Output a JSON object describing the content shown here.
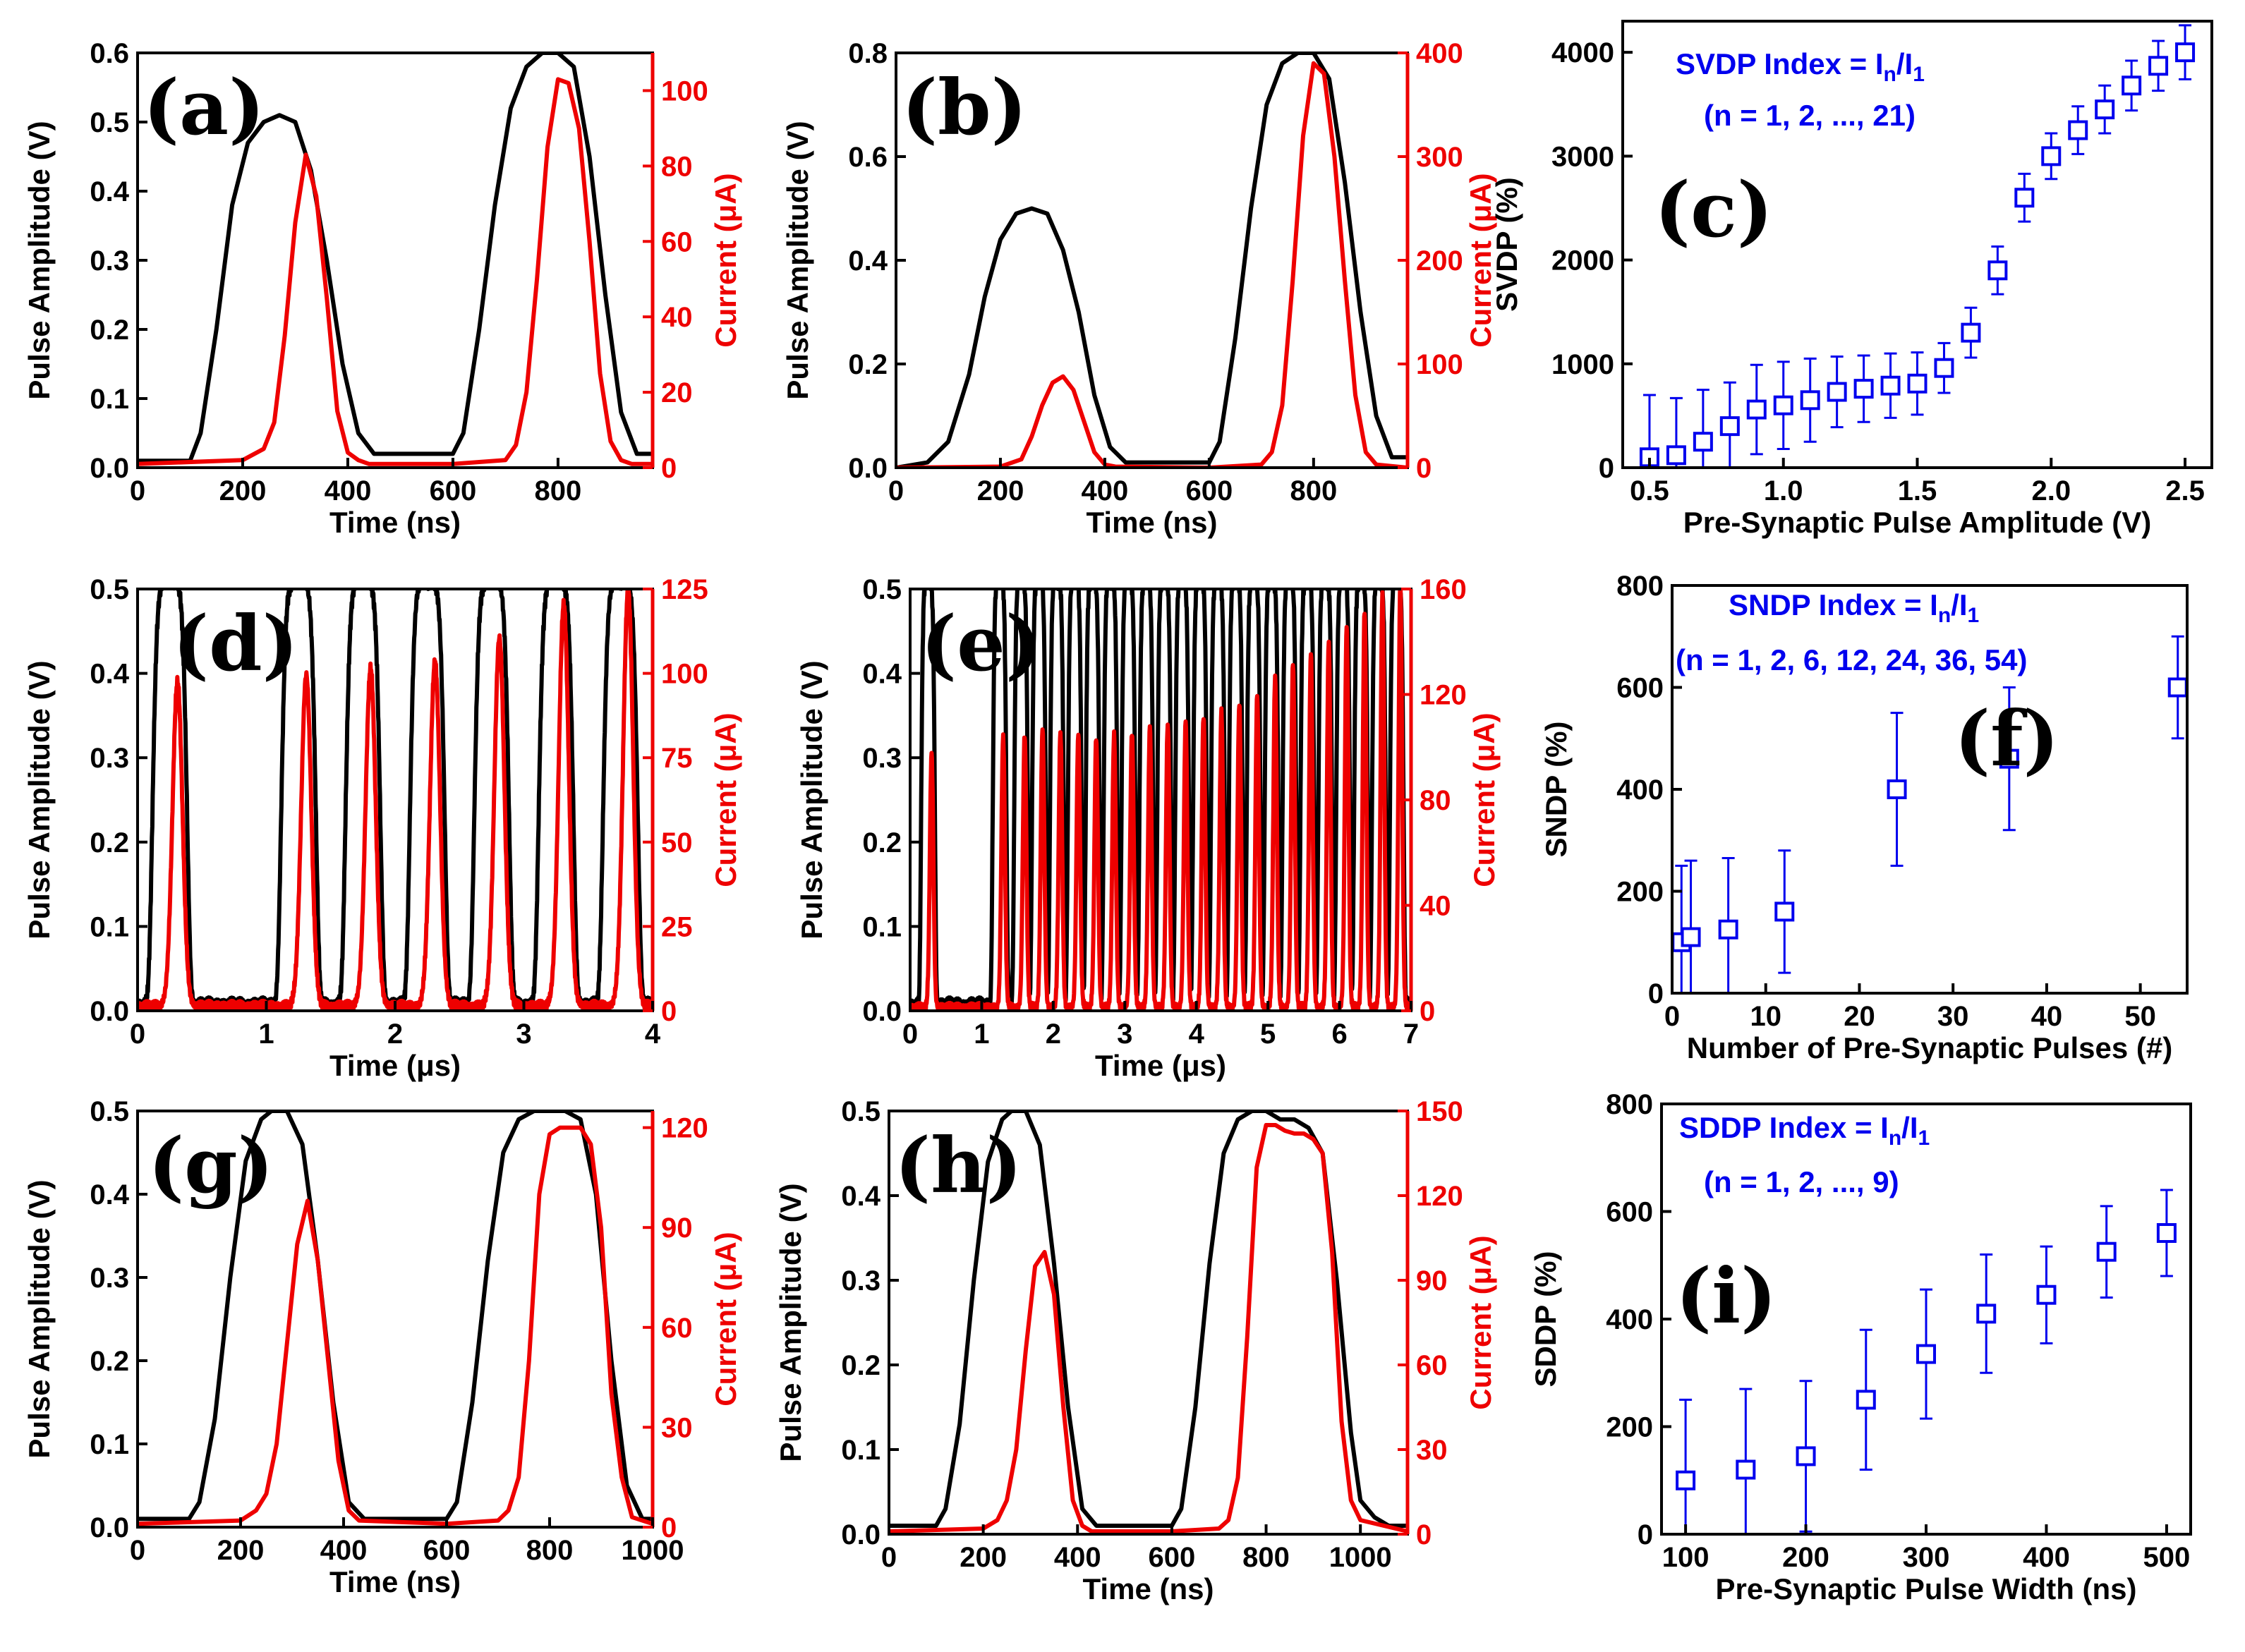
{
  "colors": {
    "voltage": "#000000",
    "current": "#ee0000",
    "marker": "#0000ee",
    "axis": "#000000"
  },
  "chart_data": [
    {
      "id": "a",
      "type": "line",
      "panel_label": "(a)",
      "xlabel": "Time (ns)",
      "ylabel": "Pulse Amplitude (V)",
      "y2label": "Current (μA)",
      "xlim": [
        0,
        980
      ],
      "ylim": [
        0,
        0.6
      ],
      "y2lim": [
        0,
        110
      ],
      "xticks": [
        0,
        200,
        400,
        600,
        800
      ],
      "yticks": [
        0.0,
        0.1,
        0.2,
        0.3,
        0.4,
        0.5,
        0.6
      ],
      "y2ticks": [
        0,
        20,
        40,
        60,
        80,
        100
      ],
      "xtick_labels": [
        "0",
        "200",
        "400",
        "600",
        "800"
      ],
      "ytick_labels": [
        "0.0",
        "0.1",
        "0.2",
        "0.3",
        "0.4",
        "0.5",
        "0.6"
      ],
      "y2tick_labels": [
        "0",
        "20",
        "40",
        "60",
        "80",
        "100"
      ],
      "voltage": {
        "x": [
          0,
          100,
          120,
          150,
          180,
          210,
          240,
          270,
          300,
          330,
          360,
          390,
          420,
          450,
          600,
          620,
          650,
          680,
          710,
          740,
          770,
          800,
          830,
          860,
          890,
          920,
          950,
          980
        ],
        "y": [
          0.01,
          0.01,
          0.05,
          0.2,
          0.38,
          0.47,
          0.5,
          0.51,
          0.5,
          0.43,
          0.3,
          0.15,
          0.05,
          0.02,
          0.02,
          0.05,
          0.2,
          0.38,
          0.52,
          0.58,
          0.6,
          0.6,
          0.58,
          0.45,
          0.25,
          0.08,
          0.02,
          0.02
        ]
      },
      "current": {
        "x": [
          0,
          200,
          240,
          260,
          280,
          300,
          320,
          340,
          360,
          380,
          400,
          420,
          440,
          600,
          700,
          720,
          740,
          760,
          780,
          800,
          820,
          840,
          860,
          880,
          900,
          920,
          940,
          980
        ],
        "y": [
          1,
          2,
          5,
          12,
          35,
          65,
          83,
          72,
          45,
          15,
          4,
          2,
          1,
          1,
          2,
          6,
          20,
          50,
          85,
          103,
          102,
          90,
          60,
          25,
          7,
          2,
          1,
          1
        ]
      }
    },
    {
      "id": "b",
      "type": "line",
      "panel_label": "(b)",
      "xlabel": "Time (ns)",
      "ylabel": "Pulse Amplitude (V)",
      "y2label": "Current (μA)",
      "xlim": [
        0,
        980
      ],
      "ylim": [
        0,
        0.8
      ],
      "y2lim": [
        0,
        400
      ],
      "xticks": [
        0,
        200,
        400,
        600,
        800
      ],
      "yticks": [
        0.0,
        0.2,
        0.4,
        0.6,
        0.8
      ],
      "y2ticks": [
        0,
        100,
        200,
        300,
        400
      ],
      "xtick_labels": [
        "0",
        "200",
        "400",
        "600",
        "800"
      ],
      "ytick_labels": [
        "0.0",
        "0.2",
        "0.4",
        "0.6",
        "0.8"
      ],
      "y2tick_labels": [
        "0",
        "100",
        "200",
        "300",
        "400"
      ],
      "voltage": {
        "x": [
          0,
          60,
          100,
          140,
          170,
          200,
          230,
          260,
          290,
          320,
          350,
          380,
          410,
          440,
          600,
          620,
          650,
          680,
          710,
          740,
          770,
          800,
          830,
          860,
          890,
          920,
          950,
          980
        ],
        "y": [
          0.0,
          0.01,
          0.05,
          0.18,
          0.33,
          0.44,
          0.49,
          0.5,
          0.49,
          0.42,
          0.3,
          0.14,
          0.04,
          0.01,
          0.01,
          0.05,
          0.25,
          0.5,
          0.7,
          0.78,
          0.8,
          0.8,
          0.75,
          0.55,
          0.3,
          0.1,
          0.02,
          0.02
        ]
      },
      "current": {
        "x": [
          0,
          200,
          240,
          260,
          280,
          300,
          320,
          340,
          360,
          380,
          400,
          420,
          600,
          700,
          720,
          740,
          760,
          780,
          800,
          820,
          840,
          860,
          880,
          900,
          920,
          980
        ],
        "y": [
          0,
          1,
          8,
          30,
          60,
          82,
          88,
          75,
          45,
          15,
          3,
          1,
          0,
          3,
          15,
          60,
          180,
          320,
          390,
          380,
          300,
          180,
          70,
          15,
          3,
          0
        ]
      }
    },
    {
      "id": "c",
      "type": "scatter",
      "panel_label": "(c)",
      "annotation_lines": [
        "SVDP Index = I",
        "(n = 1, 2, ..., 21)"
      ],
      "annotation_sub": [
        "n",
        "1"
      ],
      "xlabel": "Pre-Synaptic Pulse Amplitude (V)",
      "ylabel": "SVDP (%)",
      "xlim": [
        0.4,
        2.6
      ],
      "ylim": [
        0,
        4300
      ],
      "xticks": [
        0.5,
        1.0,
        1.5,
        2.0,
        2.5
      ],
      "yticks": [
        0,
        1000,
        2000,
        3000,
        4000
      ],
      "xtick_labels": [
        "0.5",
        "1.0",
        "1.5",
        "2.0",
        "2.5"
      ],
      "ytick_labels": [
        "0",
        "1000",
        "2000",
        "3000",
        "4000"
      ],
      "x": [
        0.5,
        0.6,
        0.7,
        0.8,
        0.9,
        1.0,
        1.1,
        1.2,
        1.3,
        1.4,
        1.5,
        1.6,
        1.7,
        1.8,
        1.9,
        2.0,
        2.1,
        2.2,
        2.3,
        2.4,
        2.5
      ],
      "y": [
        100,
        120,
        250,
        400,
        560,
        600,
        650,
        730,
        760,
        790,
        810,
        960,
        1300,
        1900,
        2600,
        3000,
        3250,
        3450,
        3680,
        3870,
        4000
      ],
      "err": [
        600,
        550,
        500,
        420,
        430,
        420,
        400,
        340,
        320,
        310,
        300,
        240,
        240,
        230,
        230,
        220,
        230,
        230,
        240,
        240,
        260
      ]
    },
    {
      "id": "d",
      "type": "line",
      "panel_label": "(d)",
      "xlabel": "Time (μs)",
      "ylabel": "Pulse Amplitude (V)",
      "y2label": "Current (μA)",
      "xlim": [
        0,
        4
      ],
      "ylim": [
        0,
        0.5
      ],
      "y2lim": [
        0,
        125
      ],
      "xticks": [
        0,
        1,
        2,
        3,
        4
      ],
      "yticks": [
        0.0,
        0.1,
        0.2,
        0.3,
        0.4,
        0.5
      ],
      "y2ticks": [
        0,
        25,
        50,
        75,
        100,
        125
      ],
      "xtick_labels": [
        "0",
        "1",
        "2",
        "3",
        "4"
      ],
      "ytick_labels": [
        "0.0",
        "0.1",
        "0.2",
        "0.3",
        "0.4",
        "0.5"
      ],
      "y2tick_labels": [
        "0",
        "25",
        "50",
        "75",
        "100",
        "125"
      ],
      "pulse_centers": [
        0.25,
        1.25,
        1.75,
        2.25,
        2.75,
        3.25,
        3.75
      ],
      "pulse_peak_voltage": 0.5,
      "current_peaks": [
        96,
        98,
        100,
        102,
        109,
        119,
        123
      ]
    },
    {
      "id": "e",
      "type": "line",
      "panel_label": "(e)",
      "xlabel": "Time (μs)",
      "ylabel": "Pulse Amplitude (V)",
      "y2label": "Current (μA)",
      "xlim": [
        0,
        7
      ],
      "ylim": [
        0,
        0.5
      ],
      "y2lim": [
        0,
        160
      ],
      "xticks": [
        0,
        1,
        2,
        3,
        4,
        5,
        6,
        7
      ],
      "yticks": [
        0.0,
        0.1,
        0.2,
        0.3,
        0.4,
        0.5
      ],
      "y2ticks": [
        0,
        40,
        80,
        120,
        160
      ],
      "xtick_labels": [
        "0",
        "1",
        "2",
        "3",
        "4",
        "5",
        "6",
        "7"
      ],
      "ytick_labels": [
        "0.0",
        "0.1",
        "0.2",
        "0.3",
        "0.4",
        "0.5"
      ],
      "y2tick_labels": [
        "0",
        "40",
        "80",
        "120",
        "160"
      ],
      "pulse_centers": [
        0.25,
        1.25,
        1.55,
        1.8,
        2.05,
        2.3,
        2.55,
        2.8,
        3.05,
        3.3,
        3.55,
        3.8,
        4.05,
        4.3,
        4.55,
        4.8,
        5.05,
        5.3,
        5.55,
        5.8,
        6.05,
        6.3,
        6.55,
        6.8
      ],
      "pulse_peak_voltage": 0.5,
      "current_peaks": [
        96,
        102,
        103,
        105,
        104,
        103,
        102,
        103,
        104,
        106,
        107,
        108,
        110,
        112,
        115,
        118,
        125,
        130,
        134,
        138,
        144,
        150,
        156,
        160
      ]
    },
    {
      "id": "f",
      "type": "scatter",
      "panel_label": "(f)",
      "annotation_lines": [
        "SNDP Index = I",
        "(n = 1, 2, 6, 12, 24, 36, 54)"
      ],
      "annotation_sub": [
        "n",
        "1"
      ],
      "xlabel": "Number of Pre-Synaptic Pulses (#)",
      "ylabel": "SNDP (%)",
      "xlim": [
        0,
        55
      ],
      "ylim": [
        0,
        800
      ],
      "xticks": [
        0,
        10,
        20,
        30,
        40,
        50
      ],
      "yticks": [
        0,
        200,
        400,
        600,
        800
      ],
      "xtick_labels": [
        "0",
        "10",
        "20",
        "30",
        "40",
        "50"
      ],
      "ytick_labels": [
        "0",
        "200",
        "400",
        "600",
        "800"
      ],
      "x": [
        1,
        2,
        6,
        12,
        24,
        36,
        54
      ],
      "y": [
        100,
        110,
        125,
        160,
        400,
        460,
        600
      ],
      "err": [
        150,
        150,
        140,
        120,
        150,
        140,
        100
      ]
    },
    {
      "id": "g",
      "type": "line",
      "panel_label": "(g)",
      "xlabel": "Time (ns)",
      "ylabel": "Pulse Amplitude (V)",
      "y2label": "Current (μA)",
      "xlim": [
        0,
        1000
      ],
      "ylim": [
        0,
        0.5
      ],
      "y2lim": [
        0,
        125
      ],
      "xticks": [
        0,
        200,
        400,
        600,
        800,
        1000
      ],
      "yticks": [
        0.0,
        0.1,
        0.2,
        0.3,
        0.4,
        0.5
      ],
      "y2ticks": [
        0,
        30,
        60,
        90,
        120
      ],
      "xtick_labels": [
        "0",
        "200",
        "400",
        "600",
        "800",
        "1000"
      ],
      "ytick_labels": [
        "0.0",
        "0.1",
        "0.2",
        "0.3",
        "0.4",
        "0.5"
      ],
      "y2tick_labels": [
        "0",
        "30",
        "60",
        "90",
        "120"
      ],
      "voltage": {
        "x": [
          0,
          100,
          120,
          150,
          180,
          210,
          240,
          260,
          290,
          320,
          350,
          380,
          410,
          440,
          600,
          620,
          650,
          680,
          710,
          740,
          770,
          800,
          830,
          860,
          890,
          920,
          950,
          980,
          1000
        ],
        "y": [
          0.01,
          0.01,
          0.03,
          0.13,
          0.3,
          0.44,
          0.49,
          0.5,
          0.5,
          0.46,
          0.32,
          0.15,
          0.03,
          0.01,
          0.01,
          0.03,
          0.15,
          0.32,
          0.45,
          0.49,
          0.5,
          0.5,
          0.5,
          0.49,
          0.4,
          0.2,
          0.05,
          0.01,
          0.01
        ]
      },
      "current": {
        "x": [
          0,
          200,
          230,
          250,
          270,
          290,
          310,
          330,
          350,
          370,
          390,
          410,
          430,
          600,
          700,
          720,
          740,
          760,
          780,
          800,
          820,
          840,
          860,
          880,
          900,
          920,
          940,
          960,
          1000
        ],
        "y": [
          1,
          2,
          5,
          10,
          25,
          55,
          85,
          98,
          80,
          50,
          20,
          5,
          2,
          1,
          2,
          5,
          15,
          50,
          100,
          118,
          120,
          120,
          120,
          115,
          90,
          40,
          15,
          3,
          1
        ]
      }
    },
    {
      "id": "h",
      "type": "line",
      "panel_label": "(h)",
      "xlabel": "Time (ns)",
      "ylabel": "Pulse Amplitude (V)",
      "y2label": "Current (μA)",
      "xlim": [
        0,
        1100
      ],
      "ylim": [
        0,
        0.5
      ],
      "y2lim": [
        0,
        150
      ],
      "xticks": [
        0,
        200,
        400,
        600,
        800,
        1000
      ],
      "yticks": [
        0.0,
        0.1,
        0.2,
        0.3,
        0.4,
        0.5
      ],
      "y2ticks": [
        0,
        30,
        60,
        90,
        120,
        150
      ],
      "xtick_labels": [
        "0",
        "200",
        "400",
        "600",
        "800",
        "1000"
      ],
      "ytick_labels": [
        "0.0",
        "0.1",
        "0.2",
        "0.3",
        "0.4",
        "0.5"
      ],
      "y2tick_labels": [
        "0",
        "30",
        "60",
        "90",
        "120",
        "150"
      ],
      "voltage": {
        "x": [
          0,
          100,
          120,
          150,
          180,
          210,
          240,
          260,
          290,
          320,
          350,
          380,
          410,
          440,
          600,
          620,
          650,
          680,
          710,
          740,
          770,
          800,
          830,
          860,
          890,
          920,
          950,
          980,
          1000,
          1030,
          1060,
          1100
        ],
        "y": [
          0.01,
          0.01,
          0.03,
          0.13,
          0.3,
          0.44,
          0.49,
          0.5,
          0.5,
          0.46,
          0.32,
          0.15,
          0.03,
          0.01,
          0.01,
          0.03,
          0.15,
          0.32,
          0.45,
          0.49,
          0.5,
          0.5,
          0.49,
          0.49,
          0.48,
          0.45,
          0.3,
          0.12,
          0.04,
          0.02,
          0.01,
          0.01
        ]
      },
      "current": {
        "x": [
          0,
          200,
          230,
          250,
          270,
          290,
          310,
          330,
          350,
          370,
          390,
          410,
          430,
          600,
          700,
          720,
          740,
          760,
          780,
          800,
          820,
          840,
          860,
          880,
          900,
          920,
          940,
          960,
          980,
          1000,
          1100
        ],
        "y": [
          1,
          2,
          5,
          12,
          30,
          65,
          95,
          100,
          85,
          45,
          12,
          3,
          1,
          1,
          2,
          5,
          20,
          70,
          130,
          145,
          145,
          143,
          142,
          142,
          140,
          135,
          100,
          40,
          12,
          5,
          1
        ]
      }
    },
    {
      "id": "i",
      "type": "scatter",
      "panel_label": "(i)",
      "annotation_lines": [
        "SDDP Index = I",
        "(n = 1, 2, ..., 9)"
      ],
      "annotation_sub": [
        "n",
        "1"
      ],
      "xlabel": "Pre-Synaptic Pulse Width (ns)",
      "ylabel": "SDDP (%)",
      "xlim": [
        80,
        520
      ],
      "ylim": [
        0,
        800
      ],
      "xticks": [
        100,
        200,
        300,
        400,
        500
      ],
      "yticks": [
        0,
        200,
        400,
        600,
        800
      ],
      "xtick_labels": [
        "100",
        "200",
        "300",
        "400",
        "500"
      ],
      "ytick_labels": [
        "0",
        "200",
        "400",
        "600",
        "800"
      ],
      "x": [
        100,
        150,
        200,
        250,
        300,
        350,
        400,
        450,
        500
      ],
      "y": [
        100,
        120,
        145,
        250,
        335,
        410,
        445,
        525,
        560
      ],
      "err": [
        150,
        150,
        140,
        130,
        120,
        110,
        90,
        85,
        80
      ]
    }
  ]
}
